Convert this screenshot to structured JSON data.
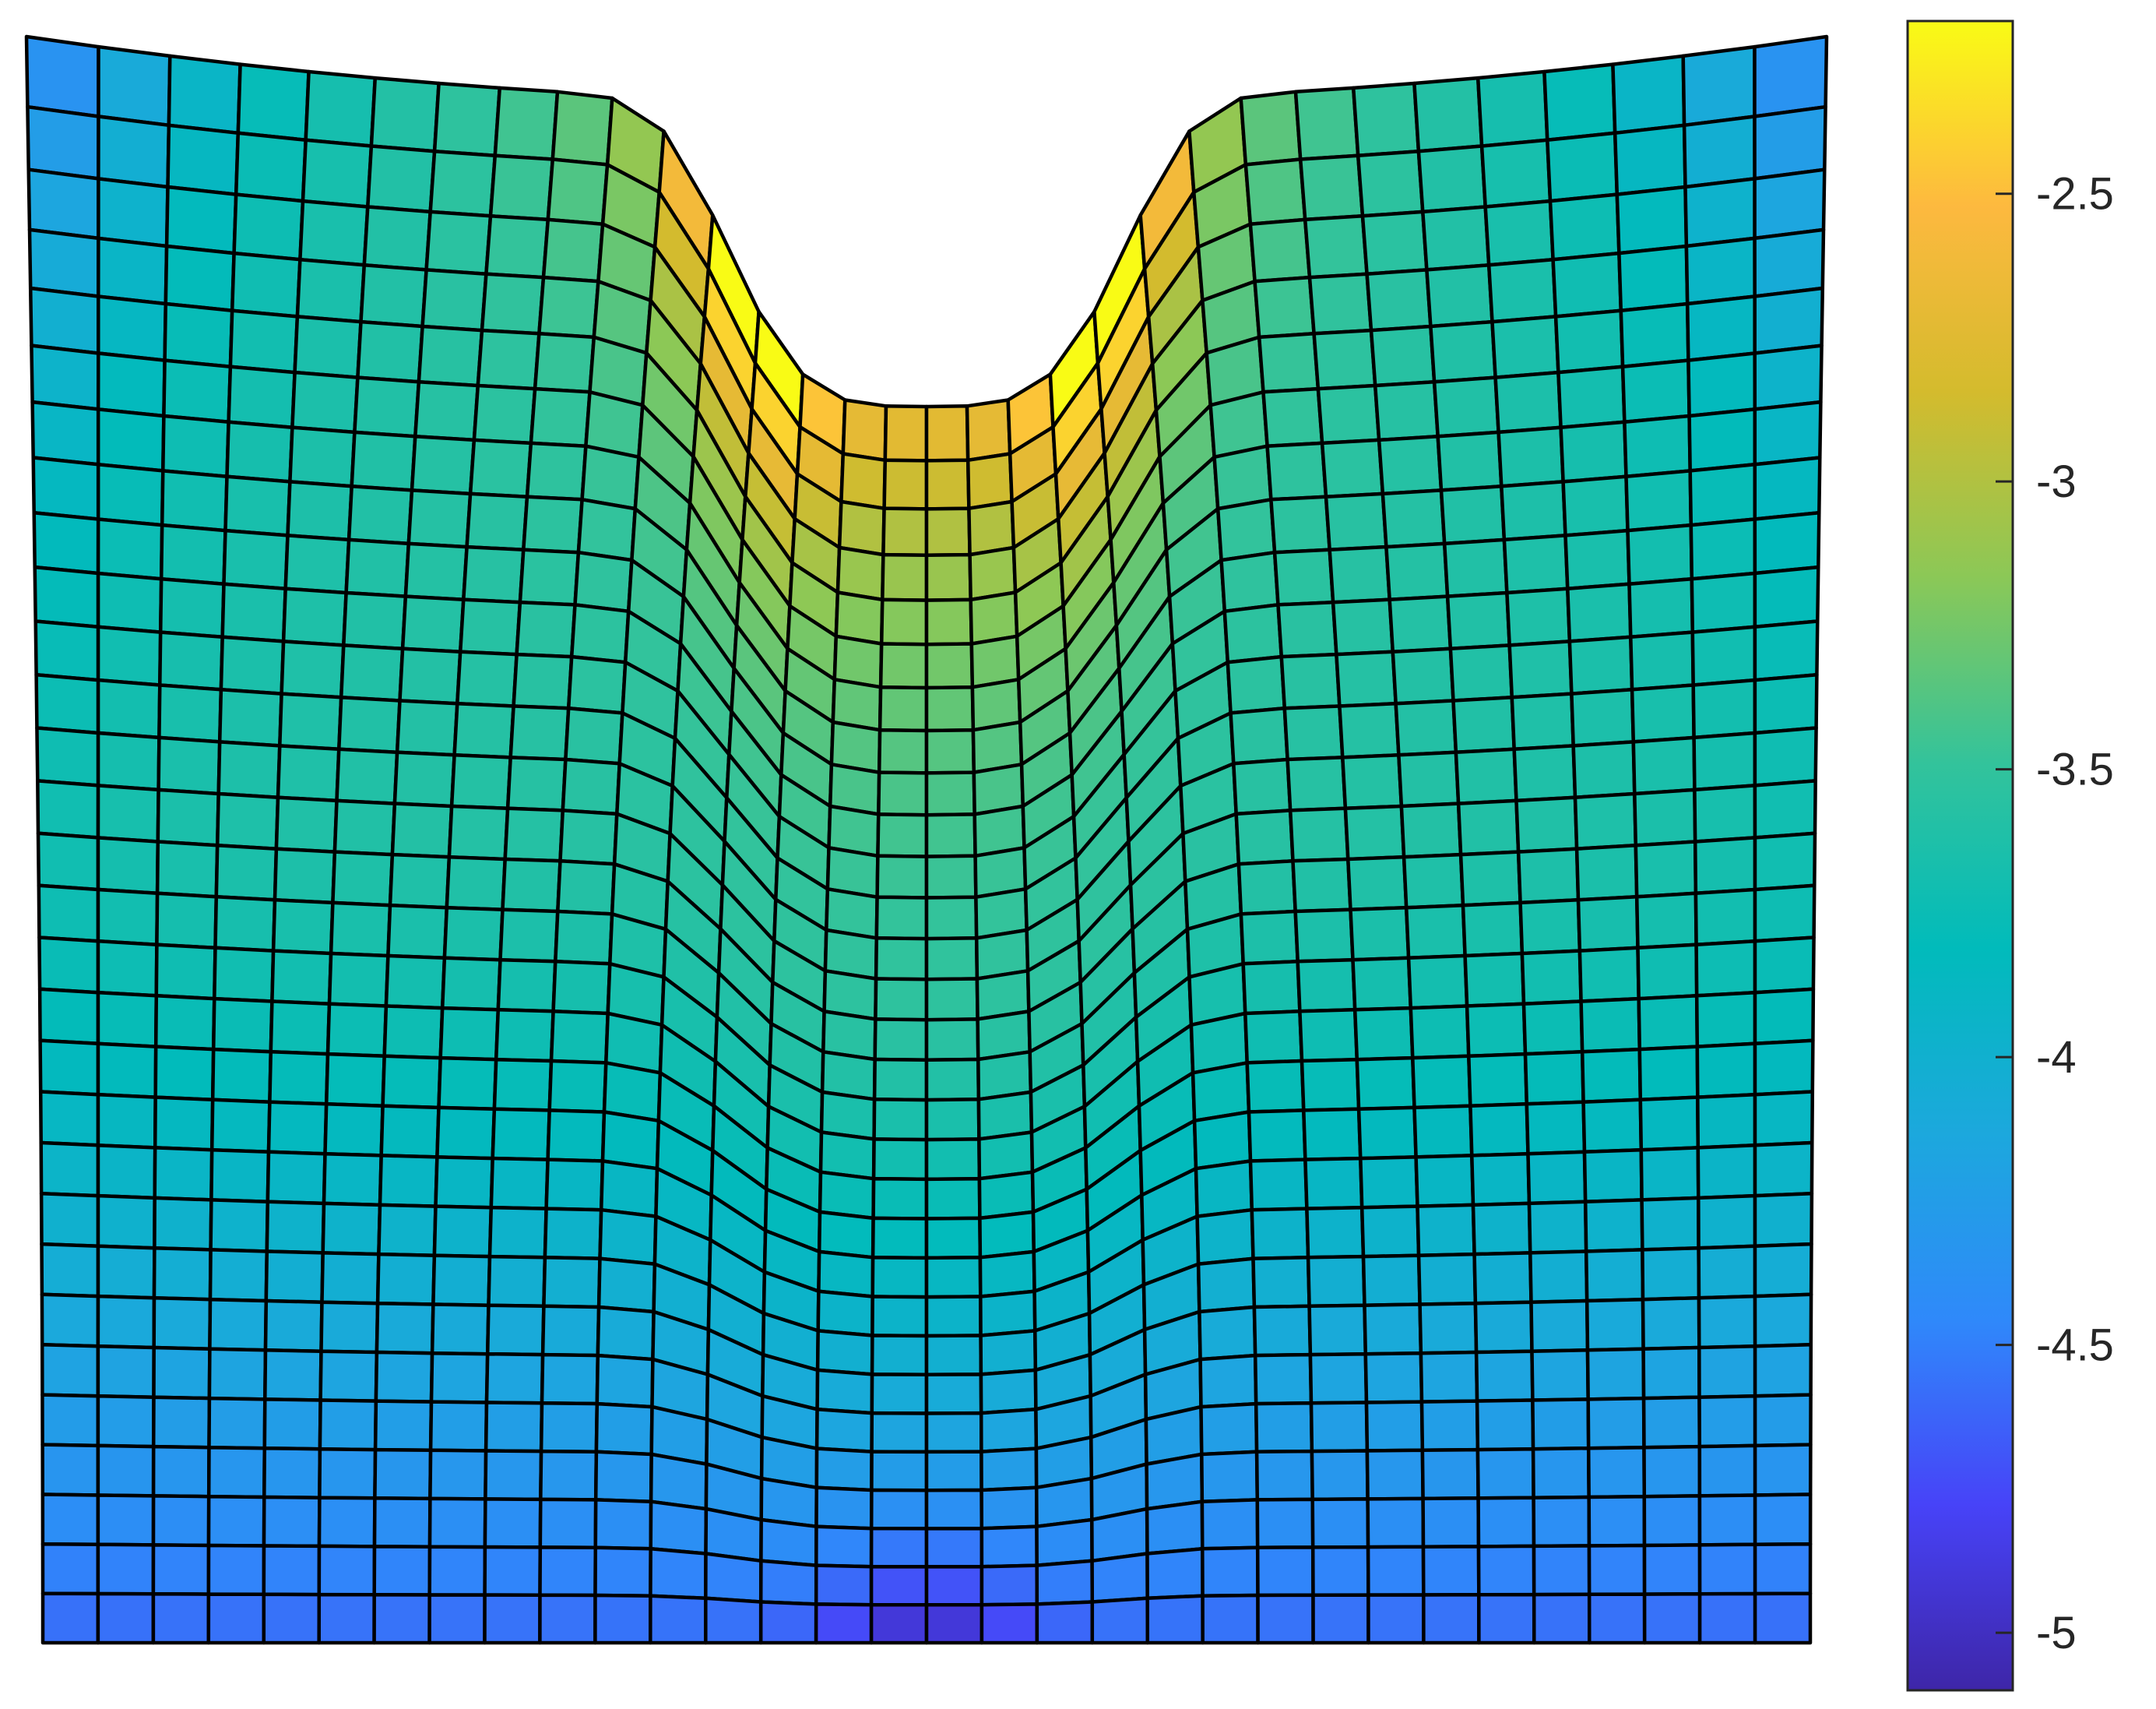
{
  "chart_data": {
    "type": "heatmap",
    "title": "",
    "xlabel": "",
    "ylabel": "",
    "colormap": "parula",
    "colorbar": {
      "range": [
        -5.1,
        -2.2
      ],
      "ticks": [
        -2.5,
        -3,
        -3.5,
        -4,
        -4.5,
        -5
      ],
      "tick_labels": [
        "-2.5",
        "-3",
        "-3.5",
        "-4",
        "-4.5",
        "-5"
      ],
      "placement": "right"
    },
    "mesh": {
      "element_columns": 32,
      "element_rows": 30,
      "value_top_corners": -4.5,
      "value_dent_peak": -2.25,
      "value_dent_center": -2.65,
      "value_bottom_center": -5.05,
      "value_bottom_sides": -4.6,
      "value_mid_body": -3.6
    },
    "colors": {
      "mesh_edge": "#000000",
      "axis": "#262626",
      "colormap_stops": [
        "#3e26a8",
        "#4743f8",
        "#2f89fa",
        "#1ca8dd",
        "#01bbbb",
        "#33c39b",
        "#8bc857",
        "#d4bb2d",
        "#fdb93f",
        "#f9fb15"
      ]
    }
  }
}
